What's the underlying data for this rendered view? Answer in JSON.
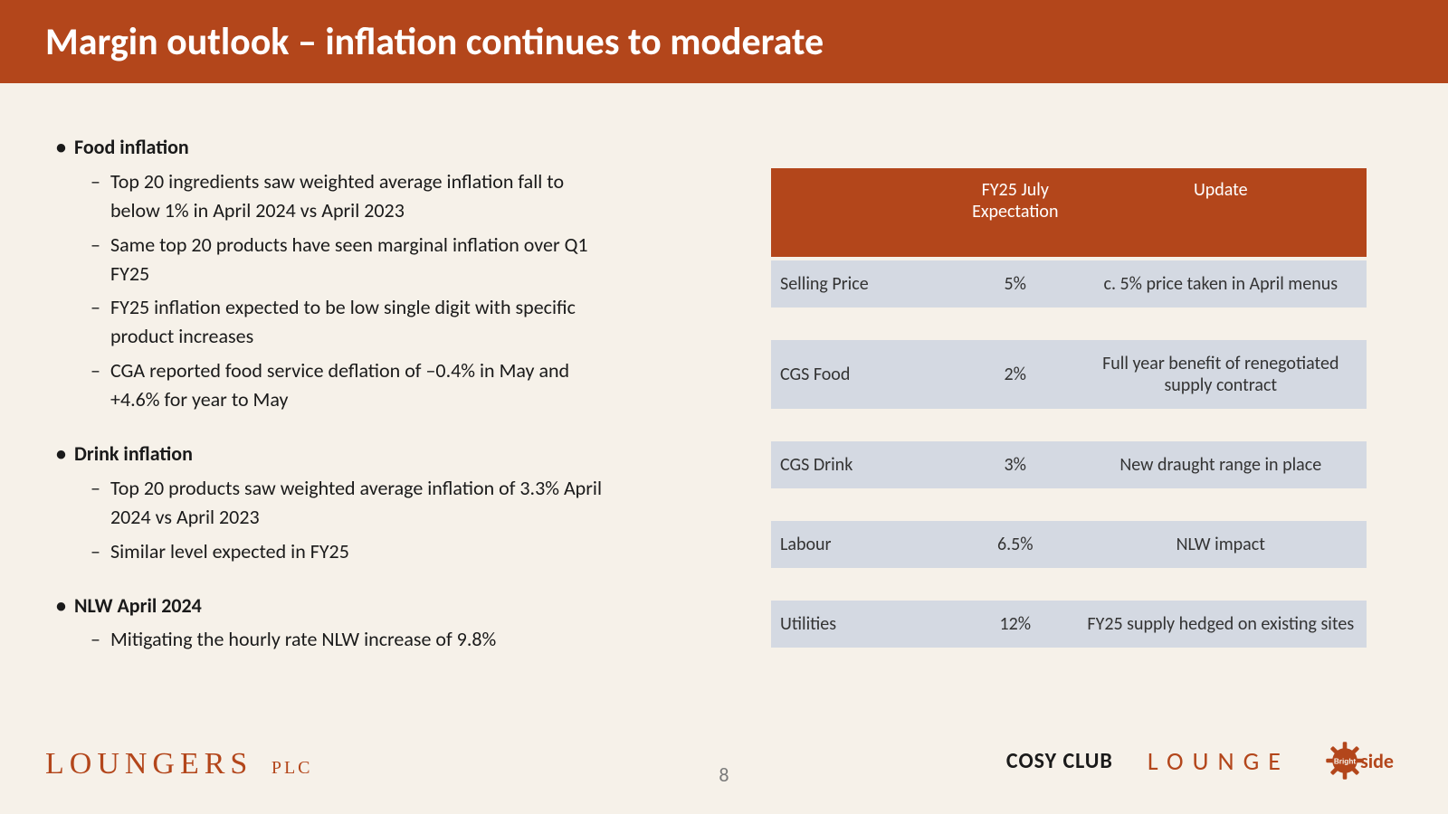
{
  "colors": {
    "brand": "#b3461b",
    "page_bg": "#f6f1e9",
    "table_row_bg": "#d4d9e2",
    "text": "#1a1a1a",
    "muted": "#7a7a7a",
    "white": "#ffffff"
  },
  "title": "Margin outlook – inflation continues to moderate",
  "page_number": "8",
  "bullets": [
    {
      "heading": "Food inflation",
      "items": [
        "Top 20 ingredients saw weighted average inflation fall to below 1% in April 2024 vs April 2023",
        "Same top 20 products have seen marginal inflation over Q1 FY25",
        "FY25 inflation expected to be low single digit with specific product increases",
        "CGA reported food service deflation of –0.4% in May and +4.6% for year to May"
      ]
    },
    {
      "heading": "Drink inflation",
      "items": [
        "Top 20 products saw weighted average inflation of 3.3% April 2024 vs April 2023",
        "Similar level expected in FY25"
      ]
    },
    {
      "heading": "NLW April 2024",
      "items": [
        "Mitigating the hourly rate NLW increase of 9.8%"
      ]
    }
  ],
  "table": {
    "columns": [
      "",
      "FY25 July Expectation",
      "Update"
    ],
    "rows": [
      {
        "label": "Selling Price",
        "expectation": "5%",
        "update": "c. 5% price taken in April menus",
        "tall": false
      },
      {
        "label": "CGS Food",
        "expectation": "2%",
        "update": "Full year benefit of renegotiated supply contract",
        "tall": true
      },
      {
        "label": "CGS Drink",
        "expectation": "3%",
        "update": "New draught range in place",
        "tall": false
      },
      {
        "label": "Labour",
        "expectation": "6.5%",
        "update": "NLW impact",
        "tall": false
      },
      {
        "label": "Utilities",
        "expectation": "12%",
        "update": "FY25 supply hedged on existing sites",
        "tall": false
      }
    ]
  },
  "footer": {
    "main_logo": "LOUNGERS",
    "main_logo_suffix": "PLC",
    "brands": {
      "cosy": "COSY CLUB",
      "lounge": "LOUNGE",
      "brightside": "Brightside"
    }
  }
}
